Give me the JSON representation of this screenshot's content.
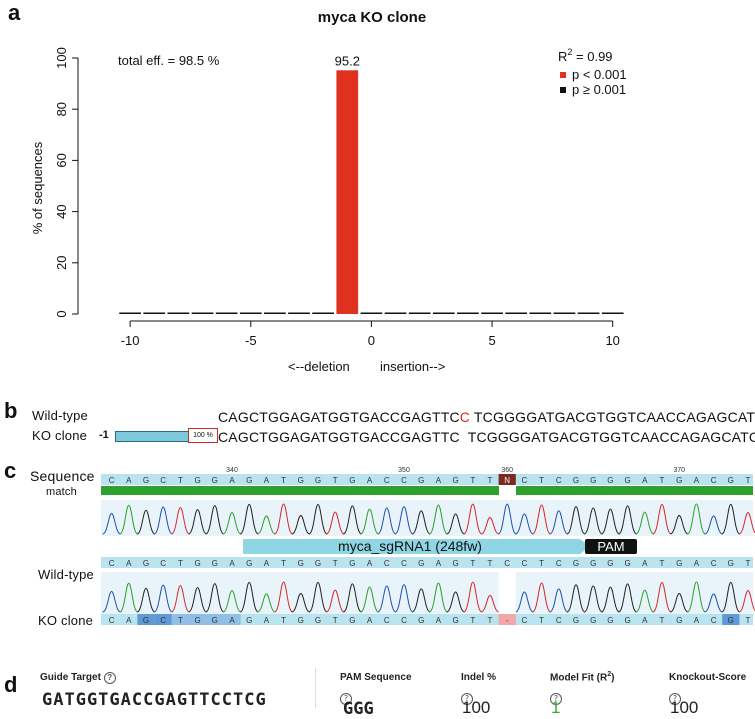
{
  "panels": {
    "a": "a",
    "b": "b",
    "c": "c",
    "d": "d"
  },
  "chart_data": {
    "type": "bar",
    "title": "myca KO clone",
    "ylabel": "% of sequences",
    "xlabel_left": "<--deletion",
    "xlabel_right": "insertion-->",
    "x": [
      -10,
      -9,
      -8,
      -7,
      -6,
      -5,
      -4,
      -3,
      -2,
      -1,
      0,
      1,
      2,
      3,
      4,
      5,
      6,
      7,
      8,
      9,
      10
    ],
    "values": [
      0.1,
      0.1,
      0.1,
      0.1,
      0.1,
      0.2,
      0.1,
      0.1,
      0.5,
      95.2,
      0.2,
      0.1,
      0.2,
      0.1,
      0.1,
      0.2,
      0.1,
      0.5,
      0.1,
      0.1,
      0.1
    ],
    "significant": [
      false,
      false,
      false,
      false,
      false,
      false,
      false,
      false,
      false,
      true,
      false,
      false,
      false,
      false,
      false,
      false,
      false,
      false,
      false,
      false,
      false
    ],
    "highlight_label": "95.2",
    "xticks": [
      -10,
      -5,
      0,
      5,
      10
    ],
    "yticks": [
      0,
      20,
      40,
      60,
      80,
      100
    ],
    "ylim": [
      0,
      100
    ],
    "annotation_left": "total eff. = 98.5 %",
    "r2_text": "R",
    "r2_sup": "2",
    "r2_value": " = 0.99",
    "legend": [
      {
        "label": "p < 0.001",
        "color": "#e03020"
      },
      {
        "label": "p ≥ 0.001",
        "color": "#111111"
      }
    ],
    "colors": {
      "significant": "#e03020",
      "nonsignificant": "#111111"
    }
  },
  "panel_b": {
    "wt_label": "Wild-type",
    "ko_label": "KO clone",
    "wt_seq_a": "CAGCTGGAGATGGTGACCGAGTTC",
    "wt_seq_mut": "C",
    "wt_seq_b": " TCGGGGATGACGTGGTCAACCAGAGCATCAT",
    "ko_indel": "-1",
    "ko_pct": "100 %",
    "ko_seq": "CAGCTGGAGATGGTGACCGAGTTC  TCGGGGATGACGTGGTCAACCAGAGCATCAT"
  },
  "panel_c": {
    "seq_label": "Sequence",
    "match_label": "match",
    "wt_label": "Wild-type",
    "ko_label": "KO clone",
    "positions": [
      "340",
      "350",
      "360",
      "370"
    ],
    "ref_bases": [
      "C",
      "A",
      "G",
      "C",
      "T",
      "G",
      "G",
      "A",
      "G",
      "A",
      "T",
      "G",
      "G",
      "T",
      "G",
      "A",
      "C",
      "C",
      "G",
      "A",
      "G",
      "T",
      "T",
      "N",
      "C",
      "T",
      "C",
      "G",
      "G",
      "G",
      "G",
      "A",
      "T",
      "G",
      "A",
      "C",
      "G",
      "T"
    ],
    "wt_bases": [
      "C",
      "A",
      "G",
      "C",
      "T",
      "G",
      "G",
      "A",
      "G",
      "A",
      "T",
      "G",
      "G",
      "T",
      "G",
      "A",
      "C",
      "C",
      "G",
      "A",
      "G",
      "T",
      "T",
      "C",
      "C",
      "T",
      "C",
      "G",
      "G",
      "G",
      "G",
      "A",
      "T",
      "G",
      "A",
      "C",
      "G",
      "T"
    ],
    "ko_bases": [
      "C",
      "A",
      "G",
      "C",
      "T",
      "G",
      "G",
      "A",
      "G",
      "A",
      "T",
      "G",
      "G",
      "T",
      "G",
      "A",
      "C",
      "C",
      "G",
      "A",
      "G",
      "T",
      "T",
      "-",
      "C",
      "T",
      "C",
      "G",
      "G",
      "G",
      "G",
      "A",
      "T",
      "G",
      "A",
      "C",
      "G",
      "T"
    ],
    "guide_label": "myca_sgRNA1 (248fw)",
    "pam_label": "PAM"
  },
  "panel_d": {
    "guide_target_head": "Guide Target",
    "guide_target_value": "GATGGTGACCGAGTTCCTCG",
    "pam_head": "PAM Sequence",
    "pam_value": "GGG",
    "indel_head": "Indel %",
    "indel_value": "100",
    "modelfit_head": "Model Fit (R",
    "modelfit_sup": "2",
    "modelfit_close": ")",
    "modelfit_value": "1",
    "ko_head": "Knockout-Score",
    "ko_value": "100",
    "help_icon": "?"
  }
}
